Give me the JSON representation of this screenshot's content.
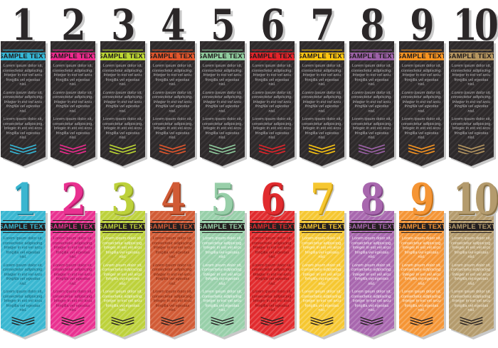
{
  "label_text": "SAMPLE TEXT",
  "lorem": {
    "p1": "Lorem ipsum dolor sit, consectetur adipiscing. Integer in est vel arcu fringilla vel egestas nisl.",
    "p2": "Lorem ipsum dolor sit, consectetur adipiscing. Integer in est vel arcu fringilla vel egestas nisl.",
    "p3": "Lorem ipsum dolor sit, consectetur adipiscing. Integer in est vel arcu fringilla vel egestas nisl."
  },
  "shadow_color": "#c9c9c9",
  "rows": [
    {
      "style": "dark",
      "base": "#2e2a2b",
      "stripe": "#3a3637",
      "text_color": "#b5b3b5",
      "number_color": "#2b2728",
      "banners": [
        {
          "number": "1",
          "accent": "#35b7d6"
        },
        {
          "number": "2",
          "accent": "#ec2a8d"
        },
        {
          "number": "3",
          "accent": "#bdd733"
        },
        {
          "number": "4",
          "accent": "#e1562c"
        },
        {
          "number": "5",
          "accent": "#90cc9e"
        },
        {
          "number": "6",
          "accent": "#e2242a"
        },
        {
          "number": "7",
          "accent": "#fcc511"
        },
        {
          "number": "8",
          "accent": "#9d62a8"
        },
        {
          "number": "9",
          "accent": "#f79421"
        },
        {
          "number": "10",
          "accent": "#b69660"
        }
      ]
    },
    {
      "style": "colored",
      "banners": [
        {
          "number": "1",
          "base": "#3ab6d0",
          "stripe": "#53c2d9",
          "text": "#145f72",
          "numdark": "#1e87a0"
        },
        {
          "number": "2",
          "base": "#e93190",
          "stripe": "#ed58a5",
          "text": "#8e1155",
          "numdark": "#b01e6b"
        },
        {
          "number": "3",
          "base": "#bdd13b",
          "stripe": "#c9db60",
          "text": "#f4f7e0",
          "numdark": "#93a325"
        },
        {
          "number": "4",
          "base": "#d15b36",
          "stripe": "#da7554",
          "text": "#7c2610",
          "numdark": "#a03f1f"
        },
        {
          "number": "5",
          "base": "#98cfa9",
          "stripe": "#abd9ba",
          "text": "#f2faf4",
          "numdark": "#6fa881"
        },
        {
          "number": "6",
          "base": "#e12b2e",
          "stripe": "#e75052",
          "text": "#7f0e10",
          "numdark": "#ad1a1d"
        },
        {
          "number": "7",
          "base": "#f6c731",
          "stripe": "#f8d45e",
          "text": "#fdf6dc",
          "numdark": "#c79a14"
        },
        {
          "number": "8",
          "base": "#a867ae",
          "stripe": "#b781bd",
          "text": "#f3e9f4",
          "numdark": "#7f4386"
        },
        {
          "number": "9",
          "base": "#f59535",
          "stripe": "#f7ac60",
          "text": "#fdf1e2",
          "numdark": "#c26d14"
        },
        {
          "number": "10",
          "base": "#b49b6d",
          "stripe": "#c2ad85",
          "text": "#f0e9d8",
          "numdark": "#8a7448"
        }
      ]
    }
  ]
}
